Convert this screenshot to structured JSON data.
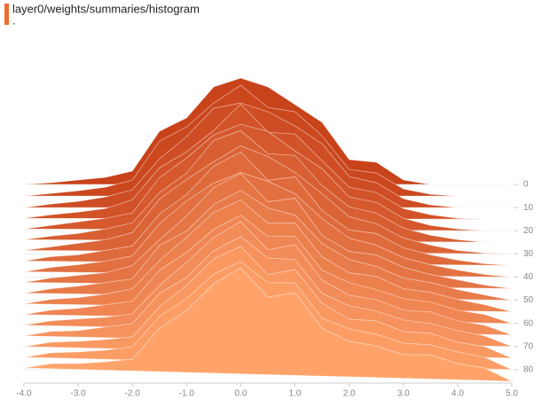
{
  "chart_data": {
    "type": "ridgeline",
    "title": "layer0/weights/summaries/histogram",
    "subtitle": ".",
    "title_color": "#f26b32",
    "x": [
      -4,
      -3.5,
      -3,
      -2.5,
      -2,
      -1.5,
      -1,
      -0.5,
      0,
      0.5,
      1,
      1.5,
      2,
      2.5,
      3,
      3.5,
      4,
      4.5,
      5
    ],
    "xlim": [
      -4,
      5
    ],
    "xticks": [
      {
        "value": -4,
        "label": "-4.0"
      },
      {
        "value": -3,
        "label": "-3.0"
      },
      {
        "value": -2,
        "label": "-2.0"
      },
      {
        "value": -1,
        "label": "-1.0"
      },
      {
        "value": 0,
        "label": "0.0"
      },
      {
        "value": 1,
        "label": "1.0"
      },
      {
        "value": 2,
        "label": "2.0"
      },
      {
        "value": 3,
        "label": "3.0"
      },
      {
        "value": 4,
        "label": "4.0"
      },
      {
        "value": 5,
        "label": "5.0"
      }
    ],
    "ylim": [
      0,
      160
    ],
    "zlim": [
      0,
      85
    ],
    "zticks": [
      0,
      10,
      20,
      30,
      40,
      50,
      60,
      70,
      80
    ],
    "colors": [
      "#c8421a",
      "#ffa36b"
    ],
    "grid": true,
    "series": [
      {
        "step": 0,
        "values": [
          0,
          2,
          5,
          8,
          15,
          60,
          75,
          110,
          120,
          110,
          90,
          70,
          28,
          25,
          5,
          0,
          0,
          0,
          0
        ]
      },
      {
        "step": 5,
        "values": [
          0,
          3,
          6,
          10,
          18,
          62,
          78,
          105,
          125,
          100,
          95,
          68,
          30,
          26,
          8,
          2,
          0,
          0,
          0
        ]
      },
      {
        "step": 10,
        "values": [
          0,
          4,
          7,
          12,
          20,
          55,
          80,
          112,
          118,
          108,
          92,
          72,
          35,
          28,
          10,
          3,
          0,
          0,
          0
        ]
      },
      {
        "step": 15,
        "values": [
          1,
          5,
          8,
          12,
          22,
          58,
          76,
          100,
          130,
          98,
          96,
          66,
          36,
          30,
          12,
          5,
          1,
          0,
          0
        ]
      },
      {
        "step": 20,
        "values": [
          2,
          6,
          10,
          14,
          20,
          60,
          82,
          108,
          120,
          112,
          90,
          70,
          38,
          32,
          14,
          6,
          2,
          0,
          0
        ]
      },
      {
        "step": 25,
        "values": [
          3,
          7,
          10,
          15,
          22,
          56,
          78,
          115,
          126,
          100,
          98,
          64,
          40,
          33,
          16,
          8,
          3,
          0,
          0
        ]
      },
      {
        "step": 30,
        "values": [
          4,
          8,
          12,
          16,
          24,
          62,
          84,
          104,
          122,
          110,
          92,
          68,
          42,
          34,
          18,
          10,
          4,
          1,
          0
        ]
      },
      {
        "step": 35,
        "values": [
          5,
          10,
          12,
          17,
          22,
          58,
          80,
          112,
          128,
          96,
          100,
          62,
          40,
          36,
          20,
          12,
          6,
          2,
          0
        ]
      },
      {
        "step": 40,
        "values": [
          6,
          11,
          14,
          18,
          24,
          60,
          86,
          106,
          118,
          108,
          94,
          66,
          44,
          36,
          22,
          14,
          8,
          3,
          0
        ]
      },
      {
        "step": 45,
        "values": [
          7,
          12,
          15,
          18,
          26,
          55,
          82,
          114,
          130,
          98,
          102,
          60,
          42,
          38,
          24,
          16,
          10,
          4,
          0
        ]
      },
      {
        "step": 50,
        "values": [
          8,
          13,
          16,
          20,
          24,
          62,
          78,
          108,
          124,
          104,
          96,
          64,
          46,
          38,
          25,
          20,
          12,
          6,
          0
        ]
      },
      {
        "step": 55,
        "values": [
          9,
          14,
          16,
          20,
          26,
          58,
          84,
          112,
          126,
          100,
          100,
          62,
          44,
          40,
          26,
          22,
          14,
          8,
          0
        ]
      },
      {
        "step": 60,
        "values": [
          10,
          15,
          17,
          21,
          25,
          60,
          80,
          106,
          122,
          98,
          98,
          60,
          46,
          38,
          28,
          24,
          15,
          10,
          0
        ]
      },
      {
        "step": 65,
        "values": [
          11,
          16,
          18,
          20,
          24,
          56,
          82,
          110,
          128,
          96,
          102,
          62,
          45,
          40,
          28,
          26,
          16,
          11,
          0
        ]
      },
      {
        "step": 70,
        "values": [
          12,
          17,
          18,
          22,
          26,
          60,
          78,
          108,
          124,
          100,
          98,
          60,
          46,
          40,
          30,
          26,
          18,
          12,
          0
        ]
      },
      {
        "step": 75,
        "values": [
          13,
          18,
          19,
          21,
          24,
          58,
          82,
          112,
          126,
          94,
          100,
          62,
          44,
          42,
          30,
          28,
          18,
          13,
          0
        ]
      },
      {
        "step": 80,
        "values": [
          14,
          19,
          20,
          22,
          26,
          60,
          80,
          108,
          122,
          98,
          98,
          58,
          46,
          40,
          30,
          28,
          20,
          14,
          0
        ]
      },
      {
        "step": 85,
        "values": [
          15,
          20,
          20,
          22,
          25,
          60,
          80,
          110,
          128,
          95,
          100,
          60,
          45,
          40,
          30,
          30,
          20,
          15,
          0
        ]
      }
    ]
  }
}
